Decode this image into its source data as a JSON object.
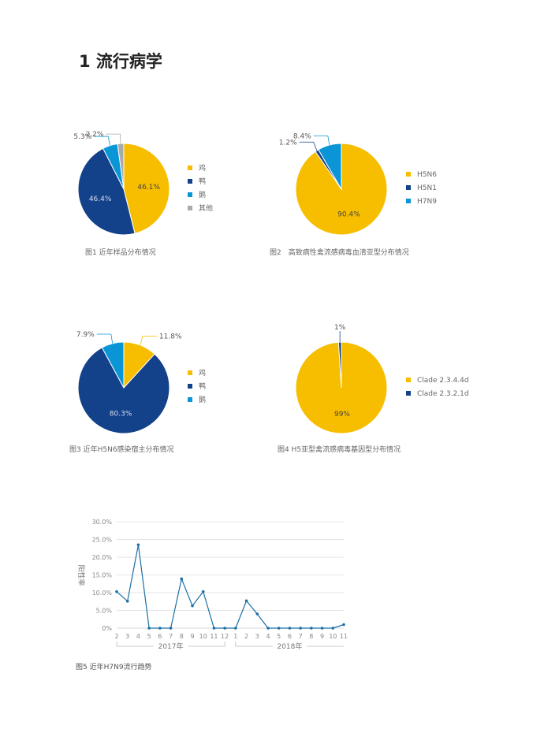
{
  "section_title": "1 流行病学",
  "colors": {
    "yellow": "#f7be00",
    "dark_blue": "#13418a",
    "light_blue": "#0a96d6",
    "gray": "#aaaaaa",
    "line": "#1c6fa6"
  },
  "chart_data": [
    {
      "type": "pie",
      "title": "图1 近年样品分布情况",
      "slices": [
        {
          "label": "鸡",
          "value": 46.1,
          "display": "46.1%",
          "color": "#f7be00"
        },
        {
          "label": "鸭",
          "value": 46.4,
          "display": "46.4%",
          "color": "#13418a"
        },
        {
          "label": "鹅",
          "value": 5.3,
          "display": "5.3%",
          "color": "#0a96d6"
        },
        {
          "label": "其他",
          "value": 2.2,
          "display": "2.2%",
          "color": "#aaaaaa"
        }
      ]
    },
    {
      "type": "pie",
      "title": "图2　高致病性禽流感病毒血清亚型分布情况",
      "slices": [
        {
          "label": "H5N6",
          "value": 90.4,
          "display": "90.4%",
          "color": "#f7be00"
        },
        {
          "label": "H5N1",
          "value": 1.2,
          "display": "1.2%",
          "color": "#13418a"
        },
        {
          "label": "H7N9",
          "value": 8.4,
          "display": "8.4%",
          "color": "#0a96d6"
        }
      ]
    },
    {
      "type": "pie",
      "title": "图3 近年H5N6感染宿主分布情况",
      "slices": [
        {
          "label": "鸡",
          "value": 11.8,
          "display": "11.8%",
          "color": "#f7be00"
        },
        {
          "label": "鸭",
          "value": 80.3,
          "display": "80.3%",
          "color": "#13418a"
        },
        {
          "label": "鹅",
          "value": 7.9,
          "display": "7.9%",
          "color": "#0a96d6"
        }
      ]
    },
    {
      "type": "pie",
      "title": "图4 H5亚型禽流感病毒基因型分布情况",
      "slices": [
        {
          "label": "Clade 2.3.4.4d",
          "value": 99,
          "display": "99%",
          "color": "#f7be00"
        },
        {
          "label": "Clade 2.3.2.1d",
          "value": 1,
          "display": "1%",
          "color": "#13418a"
        }
      ]
    },
    {
      "type": "line",
      "title": "图5 近年H7N9流行趋势",
      "ylabel": "阳性率",
      "ylim": [
        0,
        30
      ],
      "yticks": [
        "0%",
        "5.0%",
        "10.0%",
        "15.0%",
        "20.0%",
        "25.0%",
        "30.0%"
      ],
      "x": [
        "2",
        "3",
        "4",
        "5",
        "6",
        "7",
        "8",
        "9",
        "10",
        "11",
        "12",
        "1",
        "2",
        "3",
        "4",
        "5",
        "6",
        "7",
        "8",
        "9",
        "10",
        "11"
      ],
      "groups": [
        {
          "label": "2017年",
          "count": 11
        },
        {
          "label": "2018年",
          "count": 11
        }
      ],
      "values": [
        10.3,
        7.6,
        23.5,
        0,
        0,
        0,
        13.9,
        6.3,
        10.3,
        0,
        0,
        0,
        7.7,
        4.0,
        0,
        0,
        0,
        0,
        0,
        0,
        0,
        1.0
      ],
      "grid": true
    }
  ]
}
